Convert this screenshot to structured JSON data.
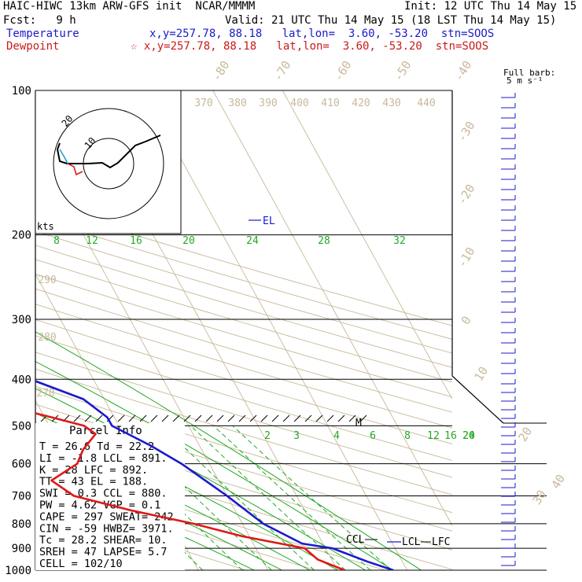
{
  "header": {
    "line1_left": "HAIC-HIWC 13km ARW-GFS init  NCAR/MMMM",
    "line1_right": "Init: 12 UTC Thu 14 May 15",
    "fcst": "Fcst:   9 h",
    "valid": "Valid: 21 UTC Thu 14 May 15 (18 LST Thu 14 May 15)",
    "temp_label": "Temperature",
    "temp_info": "x,y=257.78, 88.18   lat,lon=  3.60, -53.20  stn=SOOS",
    "dew_label": "Dewpoint",
    "dew_info": "☆ x,y=257.78, 88.18   lat,lon=  3.60, -53.20  stn=SOOS"
  },
  "barb_legend": [
    "Full barb:",
    "5 m s⁻¹"
  ],
  "hodograph": {
    "units": "kts",
    "ring_labels": [
      "10",
      "20"
    ]
  },
  "parcel": {
    "title": "Parcel Info",
    "rows": [
      "T  =    26.6 Td =  22.2",
      "LI =    -1.8 LCL =  891.",
      "K  =      28 LFC =  892.",
      "TT =      43 EL  =  188.",
      "SWI =    0.3 CCL =  880.",
      "PW =    4.62 VGP =   0.1",
      "CAPE =   297 SWEAT=  242",
      "CIN =    -59 HWBZ= 3971.",
      "Tc =    28.2 SHEAR=  10.",
      "SREH =    47 LAPSE=  5.7",
      "CELL = 102/10"
    ]
  },
  "colors": {
    "temperature": "#1a1acc",
    "dewpoint": "#e01818",
    "isotherm": "#c8b89a",
    "mixing_ratio": "#22aa22",
    "dry_adiabat": "#c8b89a"
  },
  "chart_data": {
    "type": "line",
    "diagram": "Skew-T log-P",
    "pressure_levels": [
      "100",
      "200",
      "300",
      "400",
      "500",
      "600",
      "700",
      "800",
      "900",
      "1000"
    ],
    "pressure_axis": "log",
    "isotherm_labels": [
      "-80",
      "-70",
      "-60",
      "-50",
      "-40",
      "-30",
      "-20",
      "-10",
      "0",
      "10",
      "20",
      "30",
      "40"
    ],
    "theta_labels": [
      "370",
      "380",
      "390",
      "400",
      "410",
      "420",
      "430",
      "440",
      "290",
      "280",
      "270"
    ],
    "mixing_ratio_upper": [
      "8",
      "12",
      "16",
      "20",
      "24",
      "28",
      "32"
    ],
    "mixing_ratio_lower": [
      "2",
      "3",
      "4",
      "6",
      "8",
      "12",
      "16",
      "20",
      "24"
    ],
    "level_labels": {
      "el": "EL",
      "m": "M",
      "ccl": "CCL",
      "lcl": "LCL",
      "lfc": "LFC"
    },
    "series": [
      {
        "name": "Temperature",
        "points": [
          [
            100,
            -82
          ],
          [
            120,
            -72
          ],
          [
            150,
            -62
          ],
          [
            180,
            -55
          ],
          [
            200,
            -51
          ],
          [
            250,
            -40
          ],
          [
            300,
            -30
          ],
          [
            350,
            -19
          ],
          [
            400,
            -9
          ],
          [
            440,
            -3
          ],
          [
            480,
            -1
          ],
          [
            500,
            -1
          ],
          [
            550,
            3
          ],
          [
            600,
            6
          ],
          [
            700,
            10
          ],
          [
            800,
            13
          ],
          [
            880,
            17
          ],
          [
            900,
            21
          ],
          [
            960,
            25
          ],
          [
            1000,
            28
          ]
        ]
      },
      {
        "name": "Dewpoint",
        "points": [
          [
            100,
            -95
          ],
          [
            115,
            -94
          ],
          [
            130,
            -95
          ],
          [
            150,
            -92
          ],
          [
            180,
            -86
          ],
          [
            200,
            -84
          ],
          [
            230,
            -84
          ],
          [
            250,
            -80
          ],
          [
            280,
            -68
          ],
          [
            300,
            -62
          ],
          [
            320,
            -54
          ],
          [
            340,
            -50
          ],
          [
            370,
            -44
          ],
          [
            400,
            -25
          ],
          [
            440,
            -18
          ],
          [
            480,
            -9
          ],
          [
            500,
            -5
          ],
          [
            520,
            -4
          ],
          [
            560,
            -7
          ],
          [
            600,
            -9
          ],
          [
            650,
            -14
          ],
          [
            700,
            -12
          ],
          [
            750,
            -5
          ],
          [
            800,
            3
          ],
          [
            850,
            9
          ],
          [
            900,
            17
          ],
          [
            950,
            18
          ],
          [
            1000,
            21
          ]
        ]
      }
    ]
  }
}
